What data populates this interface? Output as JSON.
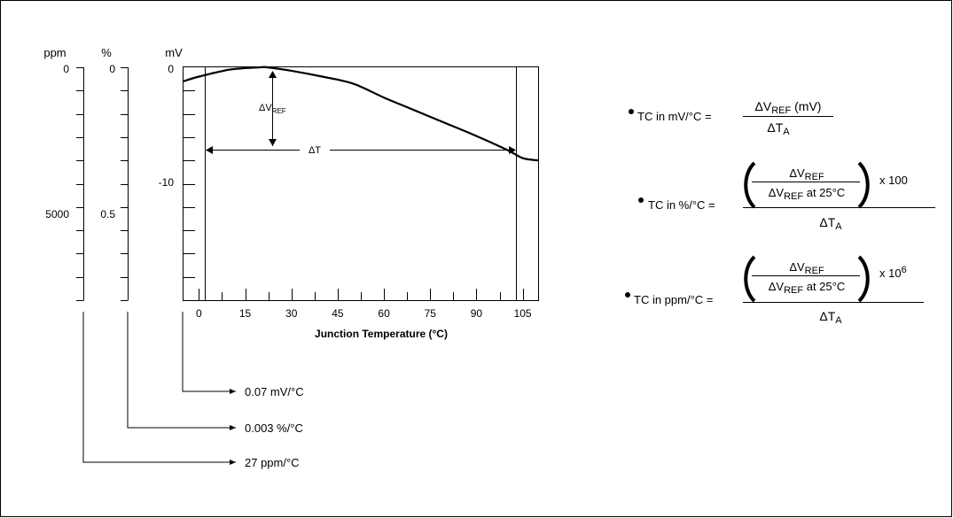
{
  "chart_data": {
    "type": "line",
    "xlabel": "Junction Temperature (°C)",
    "x_ticks": [
      "0",
      "15",
      "30",
      "45",
      "60",
      "75",
      "90",
      "105"
    ],
    "xlim": [
      -5,
      110
    ],
    "scales": {
      "mv": {
        "unit": "mV",
        "ticks": [
          "0",
          "-10"
        ]
      },
      "pct": {
        "unit": "%",
        "ticks": [
          "0",
          "0.5"
        ]
      },
      "ppm": {
        "unit": "ppm",
        "ticks": [
          "0",
          "5000"
        ]
      }
    },
    "ylim_mv": [
      -20,
      0
    ],
    "series": [
      {
        "x": [
          -5,
          0,
          10,
          20,
          22,
          30,
          40,
          50,
          60,
          70,
          80,
          90,
          100,
          105,
          110
        ],
        "y": [
          -1.2,
          -0.8,
          -0.2,
          0.0,
          0.0,
          -0.3,
          -0.8,
          -1.4,
          -2.6,
          -3.7,
          -4.8,
          -5.9,
          -7.1,
          -7.8,
          -8.0
        ]
      }
    ],
    "annotations": {
      "delta_v_ref": {
        "base": "ΔV",
        "sub": "REF"
      },
      "delta_t": "ΔT"
    },
    "results": [
      {
        "text": "0.07 mV/°C",
        "scale": "mv"
      },
      {
        "text": "0.003 %/°C",
        "scale": "pct"
      },
      {
        "text": "27 ppm/°C",
        "scale": "ppm"
      }
    ],
    "grid": false
  },
  "formulas": {
    "mv": {
      "lhs": "TC in mV/°C =",
      "num_base": "ΔV",
      "num_sub": "REF",
      "num_tail": " (mV)",
      "den_base": "ΔT",
      "den_sub": "A"
    },
    "pct": {
      "lhs": "TC in %/°C =",
      "inner_num_base": "ΔV",
      "inner_num_sub": "REF",
      "inner_den_base": "ΔV",
      "inner_den_sub": "REF",
      "inner_den_tail": " at 25°C",
      "multiplier": "x 100",
      "den_base": "ΔT",
      "den_sub": "A"
    },
    "ppm": {
      "lhs": "TC in ppm/°C =",
      "inner_num_base": "ΔV",
      "inner_num_sub": "REF",
      "inner_den_base": "ΔV",
      "inner_den_sub": "REF",
      "inner_den_tail": " at 25°C",
      "multiplier_base": "x 10",
      "multiplier_sup": "6",
      "den_base": "ΔT",
      "den_sub": "A"
    }
  }
}
